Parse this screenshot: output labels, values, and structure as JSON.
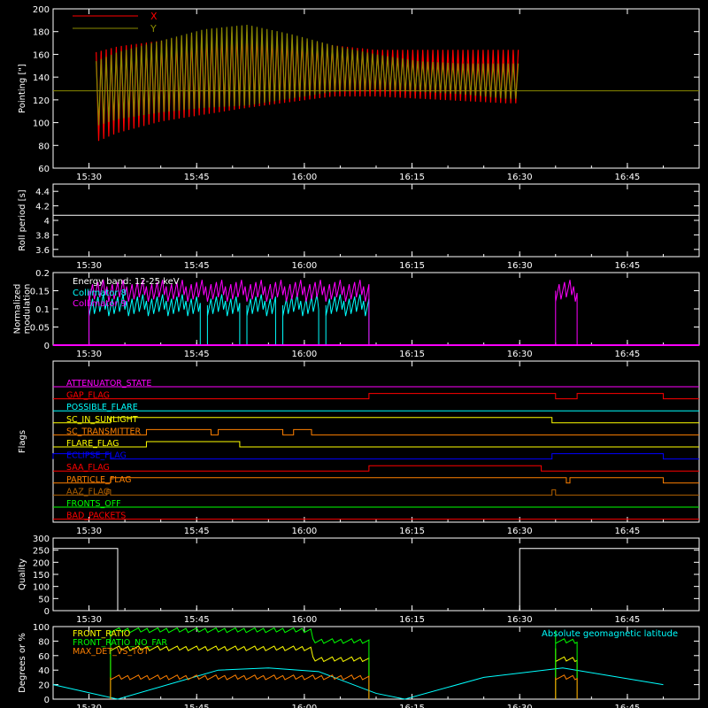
{
  "colors": {
    "background": "#000000",
    "axes": "#ffffff",
    "red": "#ff0000",
    "olive": "#8a8a00",
    "cyan": "#00ffff",
    "magenta": "#ff00ff",
    "green": "#00ff00",
    "yellow": "#ffff00",
    "orange": "#ff8000",
    "blue": "#0000ff",
    "brown": "#b06000"
  },
  "time_axis": {
    "start": "15:25",
    "end": "16:55",
    "ticks": [
      {
        "label": "15:30",
        "minutes": 930
      },
      {
        "label": "15:45",
        "minutes": 945
      },
      {
        "label": "16:00",
        "minutes": 960
      },
      {
        "label": "16:15",
        "minutes": 975
      },
      {
        "label": "16:30",
        "minutes": 990
      },
      {
        "label": "16:45",
        "minutes": 1005
      }
    ]
  },
  "chart_data": [
    {
      "id": "pointing",
      "type": "line",
      "ylabel": "Pointing [\"]",
      "ylim": [
        60,
        200
      ],
      "yticks": [
        60,
        80,
        100,
        120,
        140,
        160,
        180,
        200
      ],
      "legend": "top-left",
      "series": [
        {
          "name": "X",
          "color": "#ff0000",
          "x_minutes": [
            931,
            934,
            940,
            946,
            952,
            958,
            964,
            970,
            976,
            982,
            988,
            990
          ],
          "y_upper": [
            160,
            165,
            170,
            176,
            178,
            172,
            166,
            162,
            162,
            162,
            162,
            162
          ],
          "y_lower": [
            80,
            88,
            98,
            104,
            110,
            115,
            120,
            120,
            118,
            116,
            114,
            114
          ]
        },
        {
          "name": "Y",
          "color": "#8a8a00",
          "x_minutes": [
            931,
            934,
            940,
            946,
            952,
            958,
            964,
            970,
            976,
            982,
            988,
            990
          ],
          "y_upper": [
            152,
            160,
            170,
            180,
            184,
            176,
            166,
            158,
            152,
            150,
            150,
            150
          ],
          "y_lower": [
            94,
            100,
            106,
            110,
            112,
            118,
            124,
            126,
            124,
            122,
            118,
            118
          ]
        }
      ],
      "baseline": 128
    },
    {
      "id": "roll",
      "type": "line",
      "ylabel": "Roll period [s]",
      "ylim": [
        3.5,
        4.5
      ],
      "yticks": [
        3.6,
        3.8,
        4.0,
        4.2,
        4.4
      ],
      "series": [
        {
          "name": "",
          "color": "#ffffff",
          "value": 4.07
        }
      ]
    },
    {
      "id": "modulation",
      "type": "line",
      "ylabel": "Normalized modulation",
      "ylim": [
        0,
        0.2
      ],
      "yticks": [
        0.0,
        0.05,
        0.1,
        0.15,
        0.2
      ],
      "annotation": "Energy band: 12-25 keV",
      "legend": "top-left",
      "series": [
        {
          "name": "Collimator 8",
          "color": "#00ffff",
          "intervals": [
            [
              930,
              945.5
            ],
            [
              946.5,
              951
            ],
            [
              952,
              956
            ],
            [
              957,
              962
            ],
            [
              963,
              969
            ]
          ],
          "level": 0.11
        },
        {
          "name": "Collimator 9",
          "color": "#ff00ff",
          "intervals": [
            [
              930,
              969
            ],
            [
              995,
              998
            ]
          ],
          "level": 0.15
        }
      ]
    },
    {
      "id": "flags",
      "type": "table",
      "ylabel": "Flags",
      "rows": [
        {
          "name": "ATTENUATOR_STATE",
          "color": "#ff00ff",
          "high": []
        },
        {
          "name": "GAP_FLAG",
          "color": "#ff0000",
          "high": [
            [
              969,
              995
            ],
            [
              998,
              1010
            ]
          ]
        },
        {
          "name": "POSSIBLE_FLARE",
          "color": "#00ffff",
          "high": []
        },
        {
          "name": "SC_IN_SUNLIGHT",
          "color": "#ffff00",
          "high": [
            [
              933,
              994.5
            ]
          ]
        },
        {
          "name": "SC_TRANSMITTER",
          "color": "#ff8000",
          "high": [
            [
              938,
              947
            ],
            [
              948,
              957
            ],
            [
              958.5,
              961
            ]
          ]
        },
        {
          "name": "FLARE_FLAG",
          "color": "#ffff00",
          "high": [
            [
              938,
              951
            ]
          ]
        },
        {
          "name": "ECLIPSE_FLAG",
          "color": "#0000ff",
          "high": [
            [
              925,
              933
            ],
            [
              994.5,
              1010
            ]
          ]
        },
        {
          "name": "SAA_FLAG",
          "color": "#ff0000",
          "high": [
            [
              969,
              993
            ]
          ]
        },
        {
          "name": "PARTICLE_FLAG",
          "color": "#ff8000",
          "high": [
            [
              933,
              996.5
            ],
            [
              997,
              1010
            ]
          ]
        },
        {
          "name": "AAZ_FLAG",
          "color": "#b06000",
          "high": [
            [
              932.5,
              933
            ],
            [
              994.5,
              995
            ]
          ]
        },
        {
          "name": "FRONTS_OFF",
          "color": "#00ff00",
          "high": []
        },
        {
          "name": "BAD_PACKETS",
          "color": "#ff0000",
          "high": []
        }
      ]
    },
    {
      "id": "quality",
      "type": "line",
      "ylabel": "Quality",
      "ylim": [
        0,
        300
      ],
      "yticks": [
        0,
        50,
        100,
        150,
        200,
        250,
        300
      ],
      "series": [
        {
          "name": "",
          "color": "#ffffff",
          "steps": [
            [
              925,
              257
            ],
            [
              934,
              0
            ],
            [
              990,
              257
            ]
          ]
        }
      ]
    },
    {
      "id": "degrees",
      "type": "line",
      "ylabel": "Degrees or %",
      "ylim": [
        0,
        100
      ],
      "yticks": [
        0,
        20,
        40,
        60,
        80,
        100
      ],
      "legend": "top-left",
      "series": [
        {
          "name": "FRONT_RATIO",
          "color": "#ffff00",
          "level": 70
        },
        {
          "name": "FRONT_RATIO_NO_FAR",
          "color": "#00ff00",
          "level": 95
        },
        {
          "name": "MAX_DET_VS_TOT",
          "color": "#ff8000",
          "level": 30
        },
        {
          "name": "Absolute geomagnetic latitude",
          "color": "#00ffff",
          "x_minutes": [
            925,
            934,
            948,
            955,
            962,
            970,
            974,
            985,
            996,
            1010
          ],
          "y": [
            20,
            0,
            40,
            43,
            38,
            8,
            0,
            30,
            43,
            20
          ]
        }
      ]
    }
  ]
}
